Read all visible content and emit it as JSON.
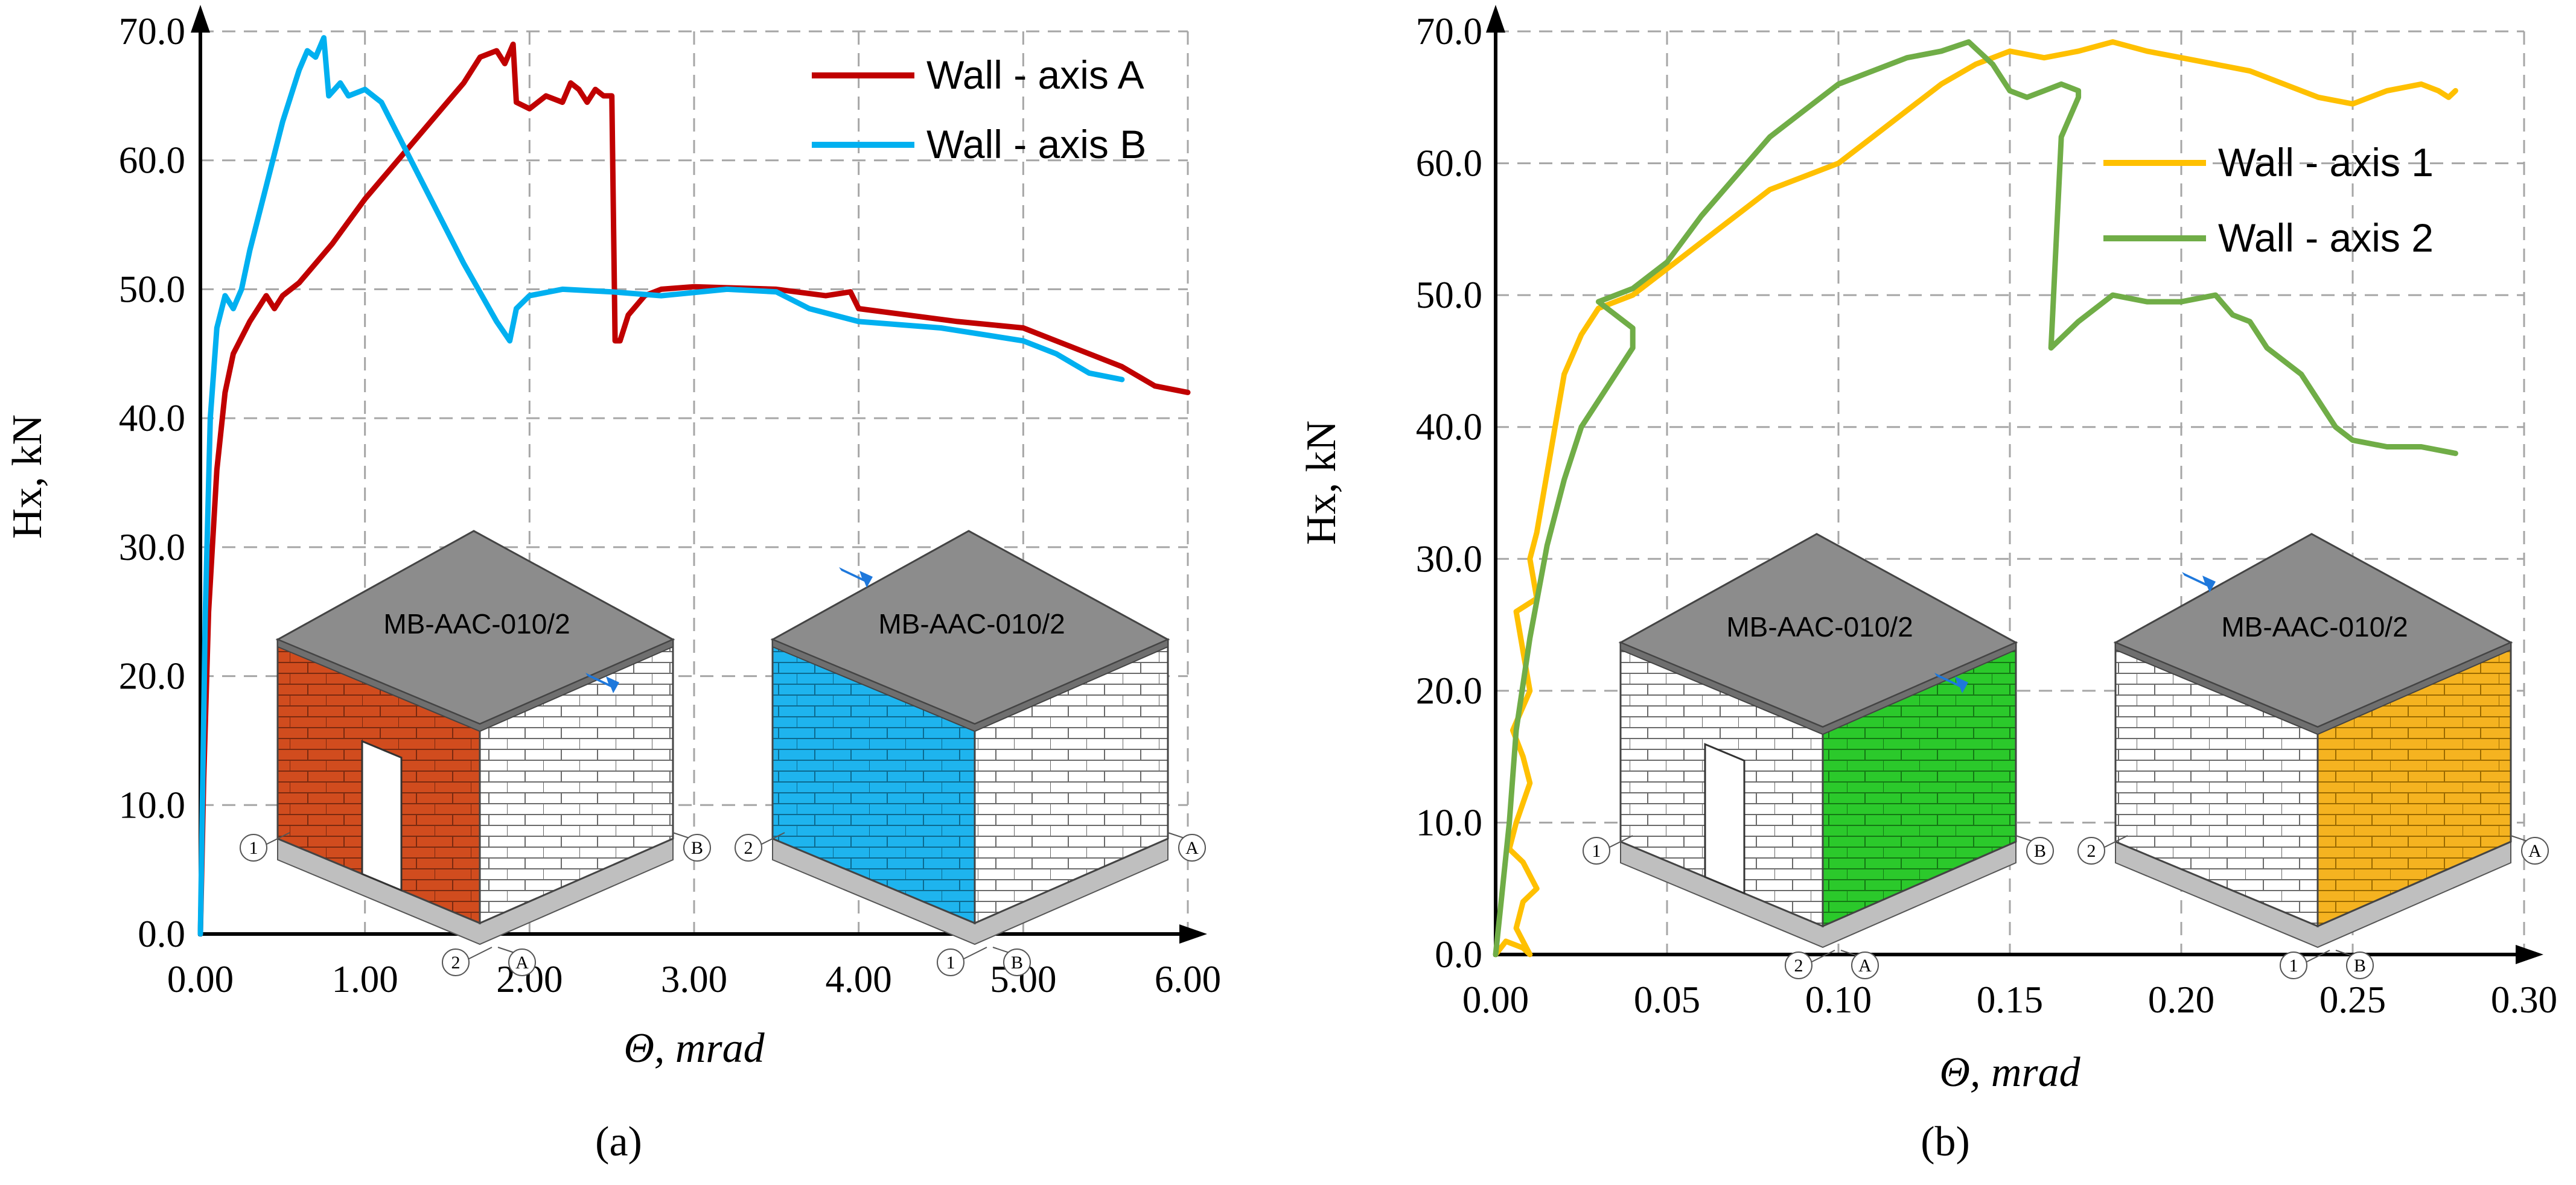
{
  "colors": {
    "axis_A": "#C00000",
    "axis_B": "#00B0F0",
    "axis_1": "#FFC000",
    "axis_2": "#70AD47",
    "brick_red": "#D14C1E",
    "brick_blue": "#1EB4EE",
    "brick_green": "#2BC92B",
    "brick_yellow": "#F5B320",
    "roof": "#8C8C8C",
    "arrow": "#1E78DC"
  },
  "icons": {
    "load_arrow": "arrow-icon"
  },
  "chart_data": [
    {
      "type": "line",
      "caption": "(a)",
      "xlabel": "Θ, mrad",
      "ylabel": "Hx, kN",
      "xlim": [
        0,
        6
      ],
      "ylim": [
        0,
        70
      ],
      "x_ticks": [
        "0.00",
        "1.00",
        "2.00",
        "3.00",
        "4.00",
        "5.00",
        "6.00"
      ],
      "y_ticks": [
        "0.0",
        "10.0",
        "20.0",
        "30.0",
        "40.0",
        "50.0",
        "60.0",
        "70.0"
      ],
      "grid": true,
      "legend_position": "top-right",
      "series": [
        {
          "name": "Wall - axis A",
          "color": "#C00000",
          "points": [
            [
              0,
              0
            ],
            [
              0.02,
              12
            ],
            [
              0.05,
              25
            ],
            [
              0.1,
              36
            ],
            [
              0.15,
              42
            ],
            [
              0.2,
              45
            ],
            [
              0.3,
              47.5
            ],
            [
              0.4,
              49.5
            ],
            [
              0.45,
              48.5
            ],
            [
              0.5,
              49.5
            ],
            [
              0.6,
              50.5
            ],
            [
              0.8,
              53.5
            ],
            [
              1.0,
              57
            ],
            [
              1.2,
              60
            ],
            [
              1.4,
              63
            ],
            [
              1.6,
              66
            ],
            [
              1.7,
              68
            ],
            [
              1.8,
              68.5
            ],
            [
              1.85,
              67.5
            ],
            [
              1.9,
              69
            ],
            [
              1.92,
              64.5
            ],
            [
              2.0,
              64
            ],
            [
              2.1,
              65
            ],
            [
              2.2,
              64.5
            ],
            [
              2.25,
              66
            ],
            [
              2.3,
              65.5
            ],
            [
              2.35,
              64.5
            ],
            [
              2.4,
              65.5
            ],
            [
              2.45,
              65
            ],
            [
              2.5,
              65
            ],
            [
              2.52,
              46
            ],
            [
              2.55,
              46
            ],
            [
              2.6,
              48
            ],
            [
              2.7,
              49.5
            ],
            [
              2.8,
              50
            ],
            [
              3.0,
              50.2
            ],
            [
              3.5,
              50
            ],
            [
              3.8,
              49.5
            ],
            [
              3.95,
              49.8
            ],
            [
              4.0,
              48.5
            ],
            [
              4.3,
              48
            ],
            [
              4.6,
              47.5
            ],
            [
              5.0,
              47
            ],
            [
              5.2,
              46
            ],
            [
              5.4,
              45
            ],
            [
              5.6,
              44
            ],
            [
              5.8,
              42.5
            ],
            [
              6.0,
              42
            ]
          ]
        },
        {
          "name": "Wall - axis B",
          "color": "#00B0F0",
          "points": [
            [
              0,
              0
            ],
            [
              0.03,
              25
            ],
            [
              0.06,
              40
            ],
            [
              0.1,
              47
            ],
            [
              0.15,
              49.5
            ],
            [
              0.2,
              48.5
            ],
            [
              0.25,
              50
            ],
            [
              0.3,
              53
            ],
            [
              0.4,
              58
            ],
            [
              0.5,
              63
            ],
            [
              0.6,
              67
            ],
            [
              0.65,
              68.5
            ],
            [
              0.7,
              68
            ],
            [
              0.75,
              69.5
            ],
            [
              0.78,
              65
            ],
            [
              0.85,
              66
            ],
            [
              0.9,
              65
            ],
            [
              1.0,
              65.5
            ],
            [
              1.1,
              64.5
            ],
            [
              1.2,
              62
            ],
            [
              1.4,
              57
            ],
            [
              1.6,
              52
            ],
            [
              1.8,
              47.5
            ],
            [
              1.88,
              46
            ],
            [
              1.92,
              48.5
            ],
            [
              2.0,
              49.5
            ],
            [
              2.2,
              50
            ],
            [
              2.5,
              49.8
            ],
            [
              2.8,
              49.5
            ],
            [
              3.2,
              50
            ],
            [
              3.5,
              49.8
            ],
            [
              3.7,
              48.5
            ],
            [
              4.0,
              47.5
            ],
            [
              4.5,
              47
            ],
            [
              5.0,
              46
            ],
            [
              5.2,
              45
            ],
            [
              5.4,
              43.5
            ],
            [
              5.6,
              43
            ]
          ]
        }
      ]
    },
    {
      "type": "line",
      "caption": "(b)",
      "xlabel": "Θ, mrad",
      "ylabel": "Hx, kN",
      "xlim": [
        0,
        0.3
      ],
      "ylim": [
        0,
        70
      ],
      "x_ticks": [
        "0.00",
        "0.05",
        "0.10",
        "0.15",
        "0.20",
        "0.25",
        "0.30"
      ],
      "y_ticks": [
        "0.0",
        "10.0",
        "20.0",
        "30.0",
        "40.0",
        "50.0",
        "60.0",
        "70.0"
      ],
      "grid": true,
      "legend_position": "right",
      "series": [
        {
          "name": "Wall - axis 1",
          "color": "#FFC000",
          "points": [
            [
              0,
              0
            ],
            [
              0.003,
              1
            ],
            [
              0.008,
              0.5
            ],
            [
              0.01,
              0
            ],
            [
              0.006,
              2
            ],
            [
              0.008,
              4
            ],
            [
              0.012,
              5
            ],
            [
              0.008,
              7
            ],
            [
              0.004,
              8
            ],
            [
              0.006,
              10
            ],
            [
              0.01,
              13
            ],
            [
              0.008,
              15
            ],
            [
              0.005,
              17
            ],
            [
              0.01,
              20
            ],
            [
              0.008,
              23
            ],
            [
              0.006,
              26
            ],
            [
              0.012,
              27
            ],
            [
              0.01,
              30
            ],
            [
              0.012,
              32
            ],
            [
              0.014,
              35
            ],
            [
              0.016,
              38
            ],
            [
              0.018,
              41
            ],
            [
              0.02,
              44
            ],
            [
              0.025,
              47
            ],
            [
              0.03,
              49
            ],
            [
              0.04,
              50
            ],
            [
              0.05,
              52
            ],
            [
              0.06,
              54
            ],
            [
              0.07,
              56
            ],
            [
              0.08,
              58
            ],
            [
              0.1,
              60
            ],
            [
              0.11,
              62
            ],
            [
              0.12,
              64
            ],
            [
              0.13,
              66
            ],
            [
              0.14,
              67.5
            ],
            [
              0.15,
              68.5
            ],
            [
              0.16,
              68
            ],
            [
              0.17,
              68.5
            ],
            [
              0.18,
              69.2
            ],
            [
              0.19,
              68.5
            ],
            [
              0.2,
              68
            ],
            [
              0.21,
              67.5
            ],
            [
              0.22,
              67
            ],
            [
              0.23,
              66
            ],
            [
              0.24,
              65
            ],
            [
              0.25,
              64.5
            ],
            [
              0.26,
              65.5
            ],
            [
              0.27,
              66
            ],
            [
              0.275,
              65.5
            ],
            [
              0.278,
              65
            ],
            [
              0.28,
              65.5
            ]
          ]
        },
        {
          "name": "Wall - axis 2",
          "color": "#70AD47",
          "points": [
            [
              0,
              0
            ],
            [
              0.002,
              5
            ],
            [
              0.004,
              10
            ],
            [
              0.006,
              17
            ],
            [
              0.01,
              24
            ],
            [
              0.015,
              31
            ],
            [
              0.02,
              36
            ],
            [
              0.025,
              40
            ],
            [
              0.03,
              42
            ],
            [
              0.035,
              44
            ],
            [
              0.04,
              46
            ],
            [
              0.04,
              47.5
            ],
            [
              0.035,
              48.5
            ],
            [
              0.03,
              49.5
            ],
            [
              0.04,
              50.5
            ],
            [
              0.05,
              52.5
            ],
            [
              0.06,
              56
            ],
            [
              0.07,
              59
            ],
            [
              0.08,
              62
            ],
            [
              0.09,
              64
            ],
            [
              0.1,
              66
            ],
            [
              0.11,
              67
            ],
            [
              0.12,
              68
            ],
            [
              0.13,
              68.5
            ],
            [
              0.138,
              69.2
            ],
            [
              0.145,
              67.5
            ],
            [
              0.15,
              65.5
            ],
            [
              0.155,
              65
            ],
            [
              0.16,
              65.5
            ],
            [
              0.165,
              66
            ],
            [
              0.17,
              65.5
            ],
            [
              0.17,
              65
            ],
            [
              0.165,
              62
            ],
            [
              0.162,
              46
            ],
            [
              0.17,
              48
            ],
            [
              0.18,
              50
            ],
            [
              0.19,
              49.5
            ],
            [
              0.2,
              49.5
            ],
            [
              0.21,
              50
            ],
            [
              0.215,
              48.5
            ],
            [
              0.22,
              48
            ],
            [
              0.225,
              46
            ],
            [
              0.23,
              45
            ],
            [
              0.235,
              44
            ],
            [
              0.24,
              42
            ],
            [
              0.245,
              40
            ],
            [
              0.25,
              39
            ],
            [
              0.26,
              38.5
            ],
            [
              0.27,
              38.5
            ],
            [
              0.28,
              38
            ]
          ]
        }
      ]
    }
  ],
  "insets": [
    {
      "label": "MB-AAC-010/2",
      "front_tags": [
        "1",
        "2"
      ],
      "side_tags": [
        "A",
        "B"
      ]
    },
    {
      "label": "MB-AAC-010/2",
      "front_tags": [
        "2",
        "1"
      ],
      "side_tags": [
        "B",
        "A"
      ]
    },
    {
      "label": "MB-AAC-010/2",
      "front_tags": [
        "1",
        "2"
      ],
      "side_tags": [
        "A",
        "B"
      ]
    },
    {
      "label": "MB-AAC-010/2",
      "front_tags": [
        "2",
        "1"
      ],
      "side_tags": [
        "B",
        "A"
      ]
    }
  ]
}
